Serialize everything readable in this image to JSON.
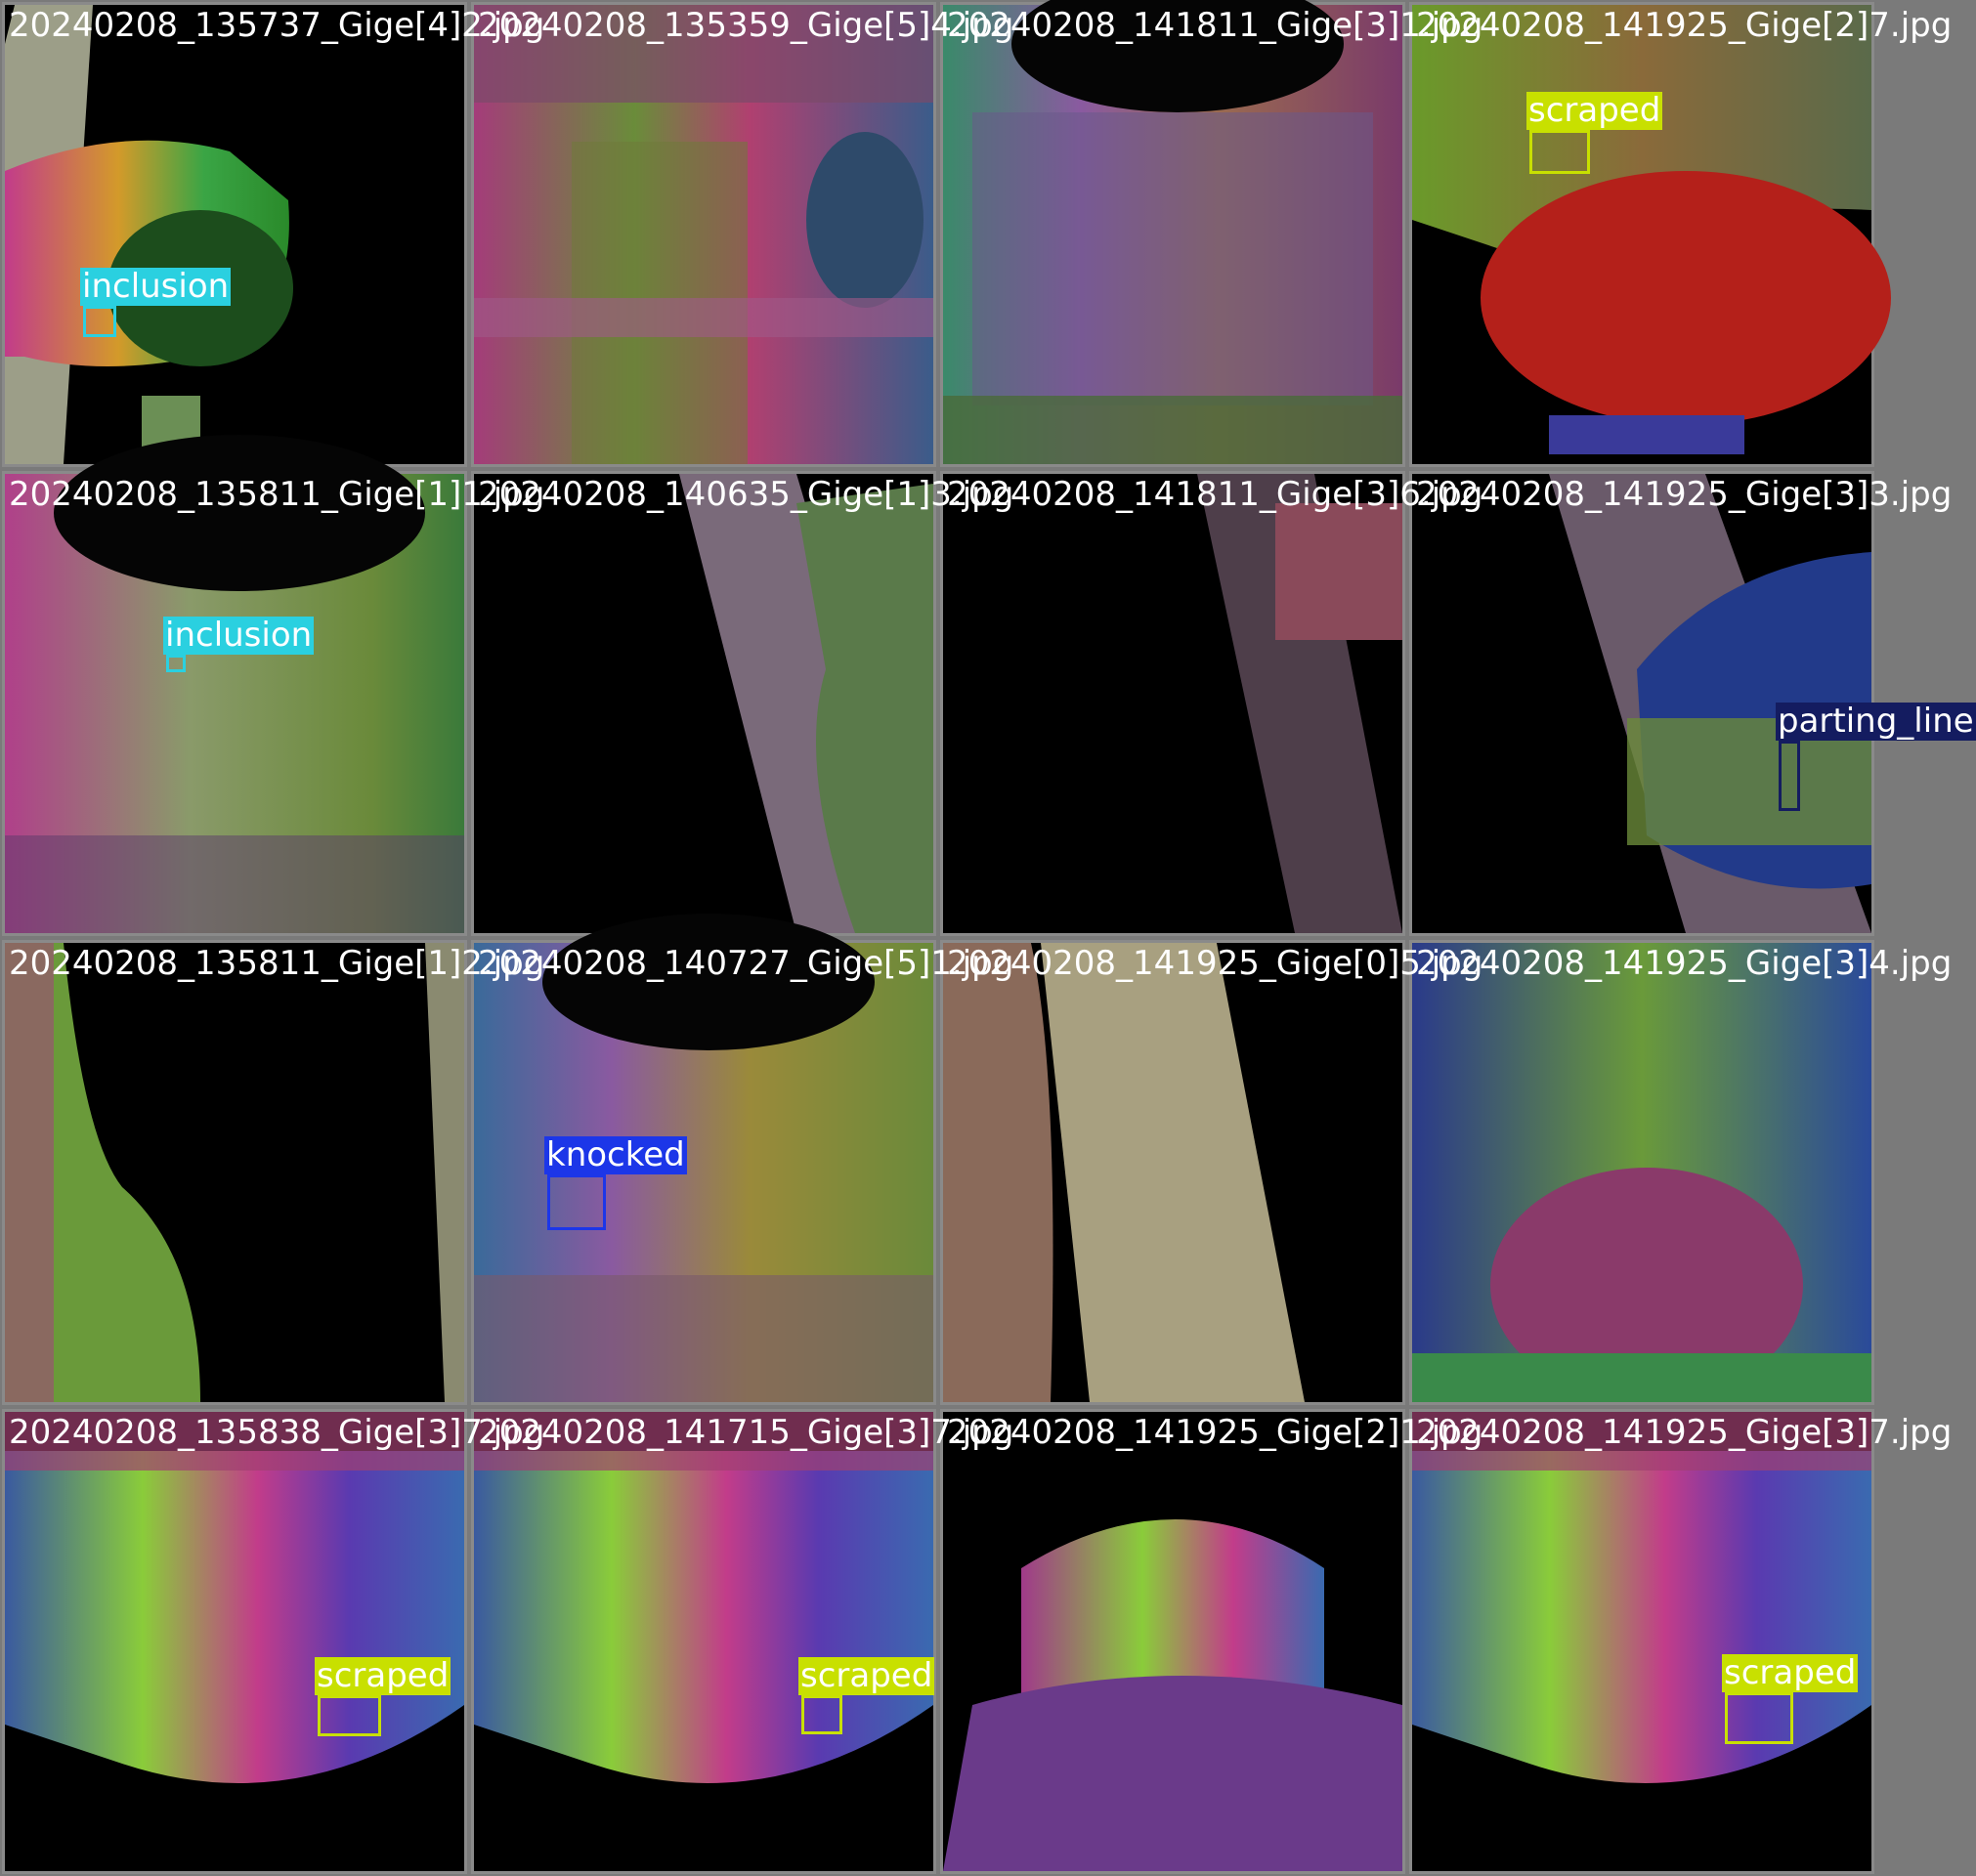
{
  "mosaic": {
    "tiles": [
      {
        "filename": "20240208_135737_Gige[4]2.jpg",
        "detections": [
          {
            "label": "inclusion",
            "color": "#2ad0e0"
          }
        ]
      },
      {
        "filename": "20240208_135359_Gige[5]4.jpg",
        "detections": []
      },
      {
        "filename": "20240208_141811_Gige[3]1.jpg",
        "detections": []
      },
      {
        "filename": "20240208_141925_Gige[2]7.jpg",
        "detections": [
          {
            "label": "scraped",
            "color": "#c8e000"
          }
        ]
      },
      {
        "filename": "20240208_135811_Gige[1]1.jpg",
        "detections": [
          {
            "label": "inclusion",
            "color": "#2ad0e0"
          }
        ]
      },
      {
        "filename": "20240208_140635_Gige[1]3.jpg",
        "detections": []
      },
      {
        "filename": "20240208_141811_Gige[3]6.jpg",
        "detections": []
      },
      {
        "filename": "20240208_141925_Gige[3]3.jpg",
        "detections": [
          {
            "label": "parting_line",
            "color": "#141c60"
          }
        ]
      },
      {
        "filename": "20240208_135811_Gige[1]2.jpg",
        "detections": []
      },
      {
        "filename": "20240208_140727_Gige[5]1.jpg",
        "detections": [
          {
            "label": "knocked",
            "color": "#1c36e8"
          }
        ]
      },
      {
        "filename": "20240208_141925_Gige[0]5.jpg",
        "detections": []
      },
      {
        "filename": "20240208_141925_Gige[3]4.jpg",
        "detections": []
      },
      {
        "filename": "20240208_135838_Gige[3]7.jpg",
        "detections": [
          {
            "label": "scraped",
            "color": "#c8e000"
          }
        ]
      },
      {
        "filename": "20240208_141715_Gige[3]7.jpg",
        "detections": [
          {
            "label": "scraped",
            "color": "#c8e000"
          }
        ]
      },
      {
        "filename": "20240208_141925_Gige[2]1.jpg",
        "detections": []
      },
      {
        "filename": "20240208_141925_Gige[3]7.jpg",
        "detections": [
          {
            "label": "scraped",
            "color": "#c8e000"
          }
        ]
      }
    ]
  }
}
